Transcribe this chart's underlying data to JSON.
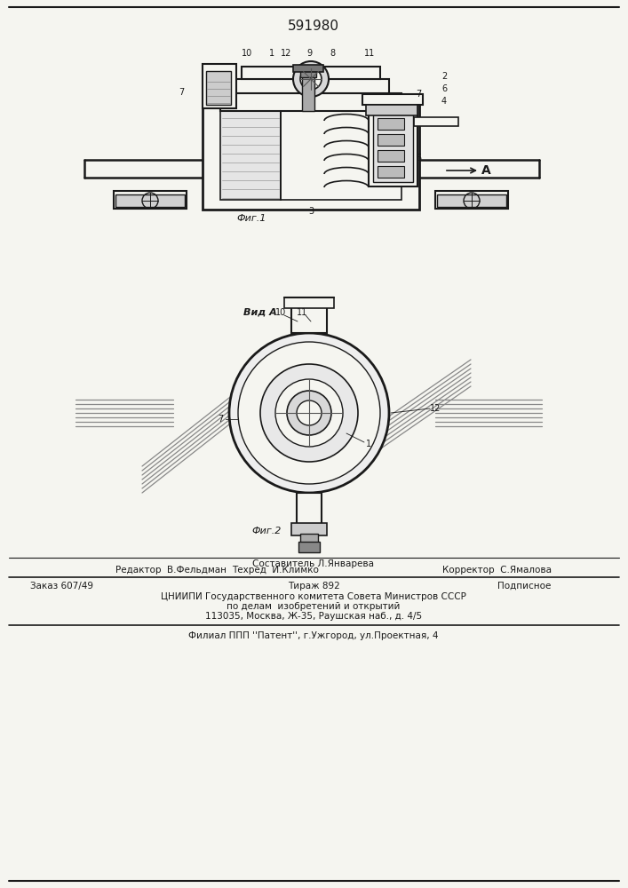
{
  "patent_number": "591980",
  "bg_color": "#f5f5f0",
  "line_color": "#1a1a1a",
  "fig1_caption": "Фиг.1",
  "fig2_caption": "Фиг.2",
  "view_label": "Вид A",
  "arrow_label": "A",
  "footer_editor": "Редактор  В.Фельдман",
  "footer_sostavitel": "Составитель Л.Январева",
  "footer_tehred": "Техред  И.Климко",
  "footer_korrektor": "Корректор  С.Ямалова",
  "footer_order": "Заказ 607/49",
  "footer_tirazh": "Тираж 892",
  "footer_podpisnoe": "Подписное",
  "footer_org1": "ЦНИИПИ Государственного комитета Совета Министров СССР",
  "footer_org2": "по делам  изобретений и открытий",
  "footer_org3": "113035, Москва, Ж-35, Раушская наб., д. 4/5",
  "footer_bottom": "Филиал ППП ''Патент'', г.Ужгород, ул.Проектная, 4"
}
